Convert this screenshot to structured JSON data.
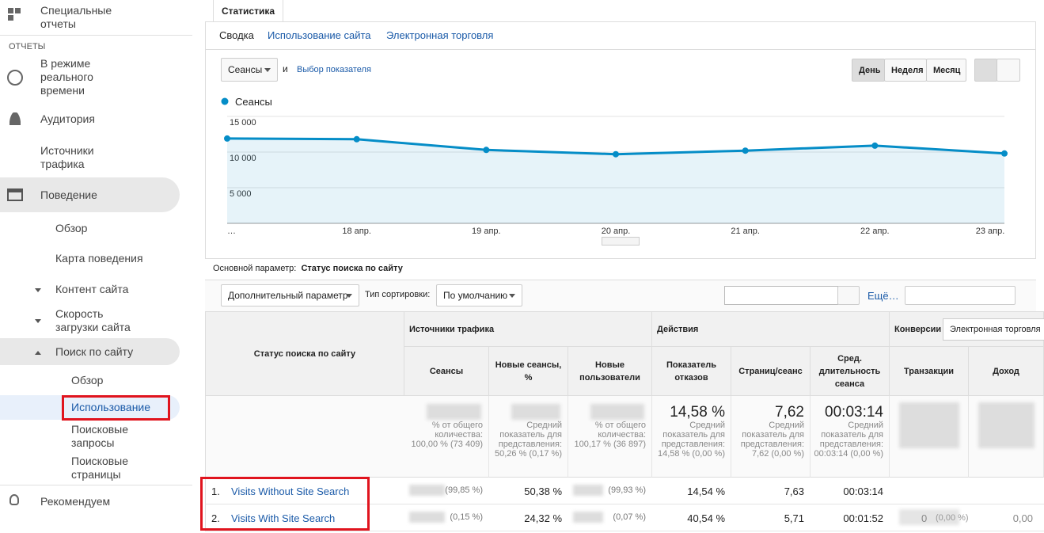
{
  "sidebar": {
    "custom_reports": "Специальные отчеты",
    "section": "ОТЧЕТЫ",
    "realtime": "В режиме реального времени",
    "audience": "Аудитория",
    "acquisition": "Источники трафика",
    "behavior": "Поведение",
    "overview": "Обзор",
    "flow": "Карта поведения",
    "content": "Контент сайта",
    "speed": "Скорость загрузки сайта",
    "search": "Поиск по сайту",
    "search_overview": "Обзор",
    "usage": "Использование",
    "terms": "Поисковые запросы",
    "pages": "Поисковые страницы",
    "recommend": "Рекомендуем"
  },
  "tab": "Статистика",
  "subnav": [
    "Сводка",
    "Использование сайта",
    "Электронная торговля"
  ],
  "metric_select": "Сеансы",
  "and": "и",
  "pick_metric": "Выбор показателя",
  "periods": [
    "День",
    "Неделя",
    "Месяц"
  ],
  "chart_data": {
    "type": "line",
    "categories": [
      "…",
      "18 апр.",
      "19 апр.",
      "20 апр.",
      "21 апр.",
      "22 апр.",
      "23 апр."
    ],
    "series": [
      {
        "name": "Сеансы",
        "color": "#058dc7",
        "values": [
          11900,
          11800,
          10300,
          9700,
          10200,
          10900,
          9800
        ]
      }
    ],
    "ylim": [
      0,
      15000
    ],
    "yticks": [
      {
        "value": 5000,
        "label": "5 000"
      },
      {
        "value": 10000,
        "label": "10 000"
      },
      {
        "value": 15000,
        "label": "15 000"
      }
    ],
    "grid": true
  },
  "primary_dimension": {
    "label": "Основной параметр:",
    "value": "Статус поиска по сайту"
  },
  "toolbar": {
    "secondary": "Дополнительный параметр",
    "sort_label": "Тип сортировки:",
    "sort": "По умолчанию",
    "more": "Ещё…"
  },
  "table": {
    "groups": [
      "Источники трафика",
      "Действия",
      "Конверсии"
    ],
    "conversion_select": "Электронная торговля",
    "columns": [
      "Статус поиска по сайту",
      "Сеансы",
      "Новые сеансы, %",
      "Новые пользователи",
      "Показатель отказов",
      "Страниц/сеанс",
      "Сред. длительность сеанса",
      "Транзакции",
      "Доход"
    ],
    "summary": [
      {
        "note": "% от общего количества: 100,00 % (73 409)"
      },
      {
        "note": "Средний показатель для представления: 50,26 % (0,17 %)"
      },
      {
        "note": "% от общего количества: 100,17 % (36 897)"
      },
      {
        "value": "14,58 %",
        "note": "Средний показатель для представления: 14,58 % (0,00 %)"
      },
      {
        "value": "7,62",
        "note": "Средний показатель для представления: 7,62 (0,00 %)"
      },
      {
        "value": "00:03:14",
        "note": "Средний показатель для представления: 00:03:14 (0,00 %)"
      }
    ],
    "rows": [
      {
        "index": "1.",
        "name": "Visits Without Site Search",
        "cells": [
          "(99,85 %)",
          "50,38 %",
          "(99,93 %)",
          "14,54 %",
          "7,63",
          "00:03:14"
        ]
      },
      {
        "index": "2.",
        "name": "Visits With Site Search",
        "cells": [
          "(0,15 %)",
          "24,32 %",
          "(0,07 %)",
          "40,54 %",
          "5,71",
          "00:01:52"
        ],
        "transactions": "0",
        "transactions_pct": "(0,00 %)",
        "revenue": "0,00"
      }
    ]
  }
}
